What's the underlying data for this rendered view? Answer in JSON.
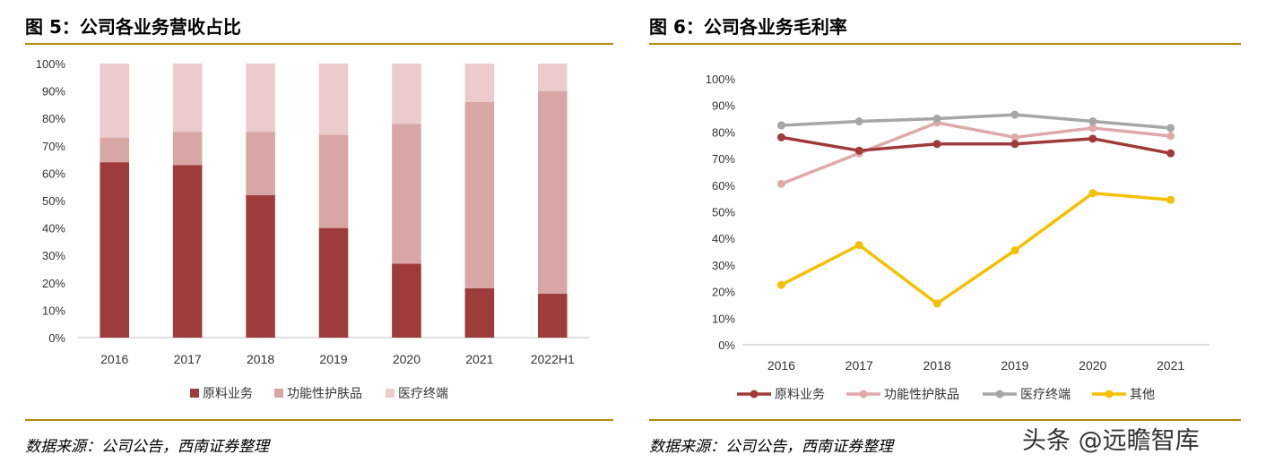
{
  "left": {
    "title": "图 5：公司各业务营收占比",
    "source": "数据来源：公司公告，西南证券整理"
  },
  "right": {
    "title": "图 6：公司各业务毛利率",
    "source": "数据来源：公司公告，西南证券整理"
  },
  "watermark": "头条 @远瞻智库",
  "colors": {
    "raw": "#9e3b3b",
    "func": "#d9a6a6",
    "med": "#ebcbcb",
    "other": "#f5c000",
    "line_raw": "#a03a3a",
    "line_func": "#dfa9a9",
    "line_med": "#a6a6a6",
    "line_other": "#f5c000",
    "rule": "#b8860b"
  },
  "chart_data": [
    {
      "type": "bar",
      "stacked": true,
      "categories": [
        "2016",
        "2017",
        "2018",
        "2019",
        "2020",
        "2021",
        "2022H1"
      ],
      "ylim": [
        0,
        100
      ],
      "yticks": [
        "0%",
        "10%",
        "20%",
        "30%",
        "40%",
        "50%",
        "60%",
        "70%",
        "80%",
        "90%",
        "100%"
      ],
      "legend_position": "bottom",
      "series": [
        {
          "name": "原料业务",
          "values": [
            64,
            63,
            52,
            40,
            27,
            18,
            16
          ]
        },
        {
          "name": "功能性护肤品",
          "values": [
            9,
            12,
            23,
            34,
            51,
            68,
            74
          ]
        },
        {
          "name": "医疗终端",
          "values": [
            27,
            25,
            25,
            26,
            22,
            14,
            10
          ]
        }
      ]
    },
    {
      "type": "line",
      "categories": [
        "2016",
        "2017",
        "2018",
        "2019",
        "2020",
        "2021"
      ],
      "ylim": [
        0,
        100
      ],
      "yticks": [
        "0%",
        "10%",
        "20%",
        "30%",
        "40%",
        "50%",
        "60%",
        "70%",
        "80%",
        "90%",
        "100%"
      ],
      "legend_position": "bottom",
      "series": [
        {
          "name": "原料业务",
          "values": [
            78,
            73,
            75.5,
            75.5,
            77.5,
            72
          ]
        },
        {
          "name": "功能性护肤品",
          "values": [
            60.5,
            72,
            83.5,
            78,
            81.5,
            78.5
          ]
        },
        {
          "name": "医疗终端",
          "values": [
            82.5,
            84,
            85,
            86.5,
            84,
            81.5
          ]
        },
        {
          "name": "其他",
          "values": [
            22.5,
            37.5,
            15.5,
            35.5,
            57,
            54.5
          ]
        }
      ]
    }
  ]
}
